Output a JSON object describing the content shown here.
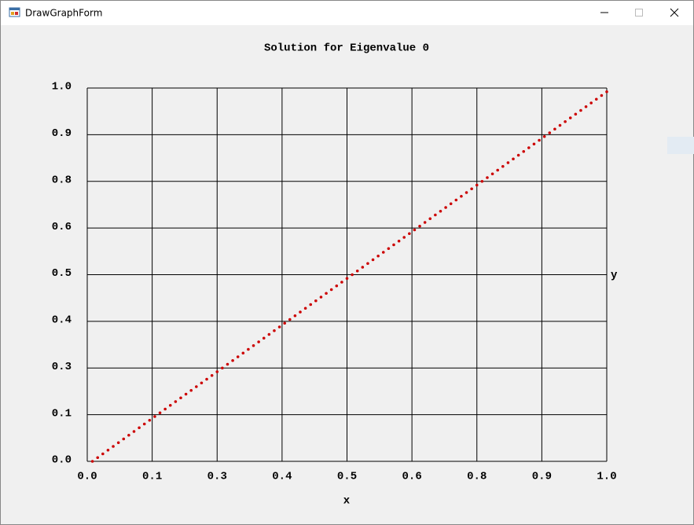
{
  "window": {
    "title": "DrawGraphForm"
  },
  "chart_data": {
    "type": "scatter",
    "title": "Solution for Eigenvalue 0",
    "x_label": "x",
    "y_label": "y",
    "xlim": [
      0,
      1
    ],
    "ylim": [
      0,
      1
    ],
    "grid": true,
    "xticks": [
      {
        "value": 0,
        "label": "0.0"
      },
      {
        "value": 0.125,
        "label": "0.1"
      },
      {
        "value": 0.25,
        "label": "0.3"
      },
      {
        "value": 0.375,
        "label": "0.4"
      },
      {
        "value": 0.5,
        "label": "0.5"
      },
      {
        "value": 0.625,
        "label": "0.6"
      },
      {
        "value": 0.75,
        "label": "0.8"
      },
      {
        "value": 0.875,
        "label": "0.9"
      },
      {
        "value": 1,
        "label": "1.0"
      }
    ],
    "yticks": [
      {
        "value": 0,
        "label": "0.0"
      },
      {
        "value": 0.125,
        "label": "0.1"
      },
      {
        "value": 0.25,
        "label": "0.3"
      },
      {
        "value": 0.375,
        "label": "0.4"
      },
      {
        "value": 0.5,
        "label": "0.5"
      },
      {
        "value": 0.625,
        "label": "0.6"
      },
      {
        "value": 0.75,
        "label": "0.8"
      },
      {
        "value": 0.875,
        "label": "0.9"
      },
      {
        "value": 1,
        "label": "1.0"
      }
    ],
    "color": "#cc0000",
    "x": [
      0.01,
      0.02,
      0.03,
      0.04,
      0.05,
      0.06,
      0.07,
      0.08,
      0.09,
      0.1,
      0.11,
      0.12,
      0.13,
      0.14,
      0.15,
      0.16,
      0.17,
      0.18,
      0.19,
      0.2,
      0.21,
      0.22,
      0.23,
      0.24,
      0.25,
      0.26,
      0.27,
      0.28,
      0.29,
      0.3,
      0.31,
      0.32,
      0.33,
      0.34,
      0.35,
      0.36,
      0.37,
      0.38,
      0.39,
      0.4,
      0.41,
      0.42,
      0.43,
      0.44,
      0.45,
      0.46,
      0.47,
      0.48,
      0.49,
      0.5,
      0.51,
      0.52,
      0.53,
      0.54,
      0.55,
      0.56,
      0.57,
      0.58,
      0.59,
      0.6,
      0.61,
      0.62,
      0.63,
      0.64,
      0.65,
      0.66,
      0.67,
      0.68,
      0.69,
      0.7,
      0.71,
      0.72,
      0.73,
      0.74,
      0.75,
      0.76,
      0.77,
      0.78,
      0.79,
      0.8,
      0.81,
      0.82,
      0.83,
      0.84,
      0.85,
      0.86,
      0.87,
      0.88,
      0.89,
      0.9,
      0.91,
      0.92,
      0.93,
      0.94,
      0.95,
      0.96,
      0.97,
      0.98,
      0.99,
      1
    ],
    "values": [
      0,
      0.01,
      0.02,
      0.03,
      0.04,
      0.05,
      0.06,
      0.07,
      0.08,
      0.09,
      0.1,
      0.11,
      0.12,
      0.13,
      0.14,
      0.15,
      0.16,
      0.17,
      0.18,
      0.19,
      0.2,
      0.21,
      0.22,
      0.23,
      0.24,
      0.25,
      0.26,
      0.27,
      0.28,
      0.29,
      0.3,
      0.31,
      0.32,
      0.33,
      0.34,
      0.35,
      0.36,
      0.37,
      0.38,
      0.39,
      0.4,
      0.41,
      0.42,
      0.43,
      0.44,
      0.45,
      0.46,
      0.47,
      0.48,
      0.49,
      0.5,
      0.51,
      0.52,
      0.53,
      0.54,
      0.55,
      0.56,
      0.57,
      0.58,
      0.59,
      0.6,
      0.61,
      0.62,
      0.63,
      0.64,
      0.65,
      0.66,
      0.67,
      0.68,
      0.69,
      0.7,
      0.71,
      0.72,
      0.73,
      0.74,
      0.75,
      0.76,
      0.77,
      0.78,
      0.79,
      0.8,
      0.81,
      0.82,
      0.83,
      0.84,
      0.85,
      0.86,
      0.87,
      0.88,
      0.89,
      0.9,
      0.91,
      0.92,
      0.93,
      0.94,
      0.95,
      0.96,
      0.97,
      0.98,
      0.99
    ]
  }
}
